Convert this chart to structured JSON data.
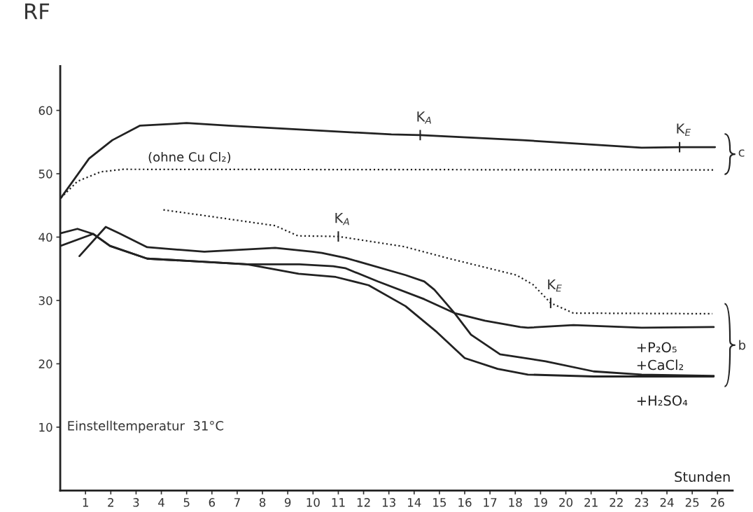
{
  "chart_data": {
    "type": "line",
    "ylabel": "RF",
    "xlabel": "Stunden",
    "xlim": [
      0,
      26.6
    ],
    "ylim": [
      0,
      67
    ],
    "xticks": [
      1,
      2,
      3,
      4,
      5,
      6,
      7,
      8,
      9,
      10,
      11,
      12,
      13,
      14,
      15,
      16,
      17,
      18,
      19,
      20,
      21,
      22,
      23,
      24,
      25,
      26
    ],
    "yticks": [
      10,
      20,
      30,
      40,
      50,
      60
    ],
    "grid": false,
    "legend": false,
    "marker": "none",
    "series": [
      {
        "color": "#222222",
        "line_style": "solid",
        "x": [
          0.03,
          1.14,
          2.06,
          3.16,
          5.0,
          6.66,
          10.35,
          13.1,
          14.24,
          18.3,
          23.0,
          24.5,
          25.9
        ],
        "values": [
          46.2,
          52.4,
          55.3,
          57.6,
          58.0,
          57.6,
          56.8,
          56.2,
          56.1,
          55.3,
          54.1,
          54.2,
          54.2
        ]
      },
      {
        "name": "(ohne Cu Cl₂)",
        "color": "#222222",
        "line_style": "dotted",
        "x": [
          0.03,
          0.68,
          1.6,
          2.5,
          25.9
        ],
        "values": [
          46.2,
          48.8,
          50.3,
          50.7,
          50.6
        ]
      },
      {
        "color": "#222222",
        "line_style": "dotted",
        "x": [
          4.08,
          5.7,
          8.5,
          9.4,
          11.0,
          13.6,
          15.4,
          18.05,
          18.7,
          19.4,
          20.3,
          25.8
        ],
        "values": [
          44.3,
          43.4,
          41.8,
          40.2,
          40.1,
          38.5,
          36.6,
          34.0,
          32.5,
          29.6,
          28.0,
          27.9
        ]
      },
      {
        "name": "+P₂O₅",
        "color": "#222222",
        "line_style": "solid",
        "x": [
          0,
          0.68,
          1.3,
          1.97,
          3.44,
          5.73,
          7.4,
          9.46,
          10.8,
          11.27,
          12.56,
          14.4,
          15.6,
          16.8,
          18.2,
          18.5,
          20.3,
          23.0,
          25.85
        ],
        "values": [
          40.6,
          41.3,
          40.5,
          38.6,
          36.6,
          36.1,
          35.7,
          35.7,
          35.4,
          35.1,
          33.0,
          30.2,
          28.0,
          26.8,
          25.8,
          25.7,
          26.1,
          25.7,
          25.8
        ]
      },
      {
        "name": "+CaCl₂",
        "color": "#222222",
        "line_style": "solid",
        "x": [
          0.76,
          1.8,
          2.33,
          3.44,
          5.7,
          8.5,
          9.98,
          10.35,
          11.3,
          13.66,
          14.4,
          14.8,
          15.6,
          16.25,
          17.4,
          19.2,
          21.1,
          23.0,
          25.85
        ],
        "values": [
          37.0,
          41.6,
          40.6,
          38.4,
          37.7,
          38.3,
          37.7,
          37.5,
          36.7,
          34.0,
          33.0,
          31.7,
          28.0,
          24.6,
          21.5,
          20.4,
          18.8,
          18.3,
          18.1
        ]
      },
      {
        "name": "+H₂SO₄",
        "color": "#222222",
        "line_style": "solid",
        "x": [
          0,
          1.3,
          1.97,
          3.44,
          5.73,
          7.4,
          9.43,
          10.9,
          12.2,
          13.66,
          14.9,
          16.0,
          17.3,
          18.5,
          21.1,
          25.85
        ],
        "values": [
          38.6,
          40.5,
          38.6,
          36.6,
          36.1,
          35.7,
          34.2,
          33.7,
          32.4,
          29.1,
          25.0,
          20.9,
          19.2,
          18.3,
          18.0,
          18.0
        ]
      }
    ],
    "annotations": [
      "Einstelltemperatur  31°C",
      {
        "text": "K$_{A}$",
        "x": 14.24,
        "y": 56.1
      },
      {
        "text": "K$_{E}$",
        "x": 24.5,
        "y": 54.2
      },
      {
        "text": "K$_{A}$",
        "x": 11.0,
        "y": 40.1
      },
      {
        "text": "K$_{E}$",
        "x": 19.4,
        "y": 29.6
      },
      "c",
      "b"
    ]
  }
}
